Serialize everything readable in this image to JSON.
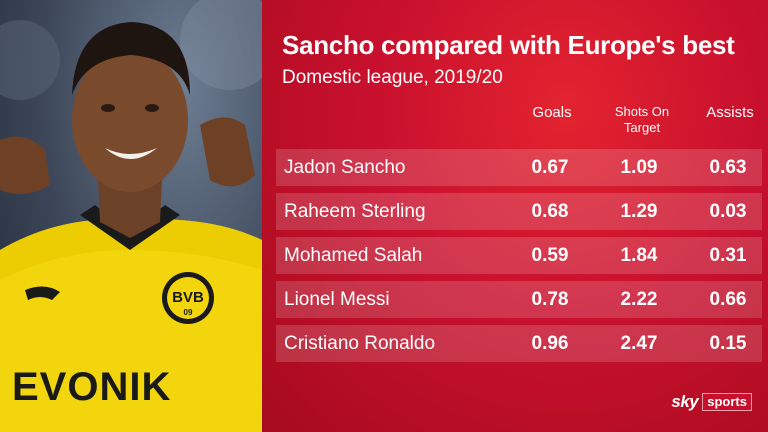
{
  "title": "Sancho compared with Europe's best",
  "subtitle": "Domestic league, 2019/20",
  "columns": {
    "goals": "Goals",
    "shots_line1": "Shots On",
    "shots_line2": "Target",
    "assists": "Assists"
  },
  "rows": [
    {
      "name": "Jadon Sancho",
      "goals": "0.67",
      "shots": "1.09",
      "assists": "0.63"
    },
    {
      "name": "Raheem Sterling",
      "goals": "0.68",
      "shots": "1.29",
      "assists": "0.03"
    },
    {
      "name": "Mohamed Salah",
      "goals": "0.59",
      "shots": "1.84",
      "assists": "0.31"
    },
    {
      "name": "Lionel Messi",
      "goals": "0.78",
      "shots": "2.22",
      "assists": "0.66"
    },
    {
      "name": "Cristiano Ronaldo",
      "goals": "0.96",
      "shots": "2.47",
      "assists": "0.15"
    }
  ],
  "photo": {
    "crest_text": "BVB",
    "crest_number": "09",
    "sponsor": "EVONIK"
  },
  "logo": {
    "sky": "sky",
    "sports": "sports"
  },
  "colors": {
    "panel": "#c8102e",
    "shirt": "#f5d90a",
    "crest": "#f5d90a"
  }
}
